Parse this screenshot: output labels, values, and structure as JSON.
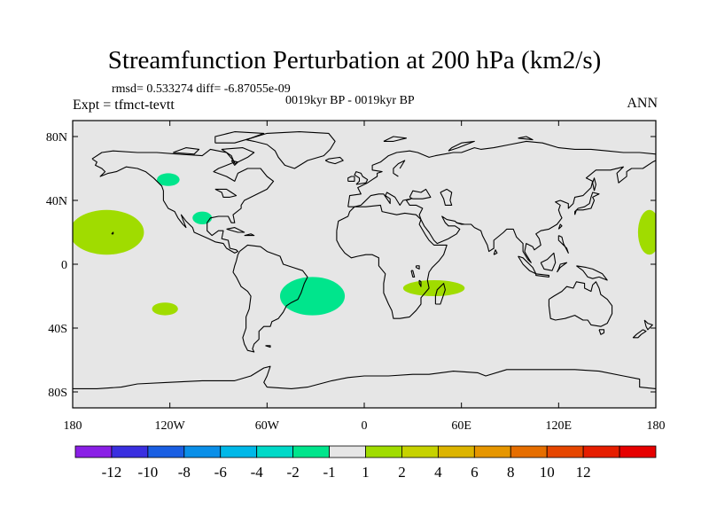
{
  "title": "Streamfunction Perturbation at 200 hPa (km2/s)",
  "stats": "rmsd= 0.533274 diff= -6.87055e-09",
  "period": "0019kyr BP - 0019kyr BP",
  "experiment": "Expt = tfmct-tevtt",
  "season": "ANN",
  "map": {
    "background_color": "#e6e6e6",
    "coastline_color": "#000000",
    "x_ticks": [
      {
        "lon": -180,
        "label": "180"
      },
      {
        "lon": -120,
        "label": "120W"
      },
      {
        "lon": -60,
        "label": "60W"
      },
      {
        "lon": 0,
        "label": "0"
      },
      {
        "lon": 60,
        "label": "60E"
      },
      {
        "lon": 120,
        "label": "120E"
      },
      {
        "lon": 180,
        "label": "180"
      }
    ],
    "y_ticks": [
      {
        "lat": 80,
        "label": "80N"
      },
      {
        "lat": 40,
        "label": "40N"
      },
      {
        "lat": 0,
        "label": "0"
      },
      {
        "lat": -40,
        "label": "40S"
      },
      {
        "lat": -80,
        "label": "80S"
      }
    ],
    "extent": {
      "lon": [
        -180,
        180
      ],
      "lat": [
        -90,
        90
      ]
    },
    "anomalies": [
      {
        "name": "north-pacific-positive",
        "lon": -159,
        "lat": 20,
        "rlon": 23,
        "rlat": 14,
        "color": "#a0dc00"
      },
      {
        "name": "dateline-east-positive",
        "lon": 176,
        "lat": 20,
        "rlon": 7,
        "rlat": 14,
        "color": "#a0dc00"
      },
      {
        "name": "sw-pacific-positive",
        "lon": -123,
        "lat": -28,
        "rlon": 8,
        "rlat": 4,
        "color": "#a0dc00"
      },
      {
        "name": "madagascar-positive",
        "lon": 43,
        "lat": -15,
        "rlon": 19,
        "rlat": 5,
        "color": "#a0dc00"
      },
      {
        "name": "nw-america-negative",
        "lon": -121,
        "lat": 53,
        "rlon": 7,
        "rlat": 4,
        "color": "#00e58c"
      },
      {
        "name": "gulf-mexico-negative",
        "lon": -100,
        "lat": 29,
        "rlon": 6,
        "rlat": 4,
        "color": "#00e58c"
      },
      {
        "name": "south-atlantic-negative",
        "lon": -32,
        "lat": -20,
        "rlon": 20,
        "rlat": 12,
        "color": "#00e58c"
      }
    ]
  },
  "colorbar": {
    "colors": [
      "#8a1fe6",
      "#3a2fe0",
      "#1a5fe3",
      "#0a8fe8",
      "#00b8e8",
      "#00d9c8",
      "#00e58c",
      "#e6e6e6",
      "#a0dc00",
      "#c6d200",
      "#dcb400",
      "#e69600",
      "#e66e00",
      "#e64600",
      "#e61e00",
      "#e60000"
    ],
    "labels": [
      "-12",
      "-10",
      "-8",
      "-6",
      "-4",
      "-2",
      "-1",
      "1",
      "2",
      "4",
      "6",
      "8",
      "10",
      "12"
    ]
  }
}
